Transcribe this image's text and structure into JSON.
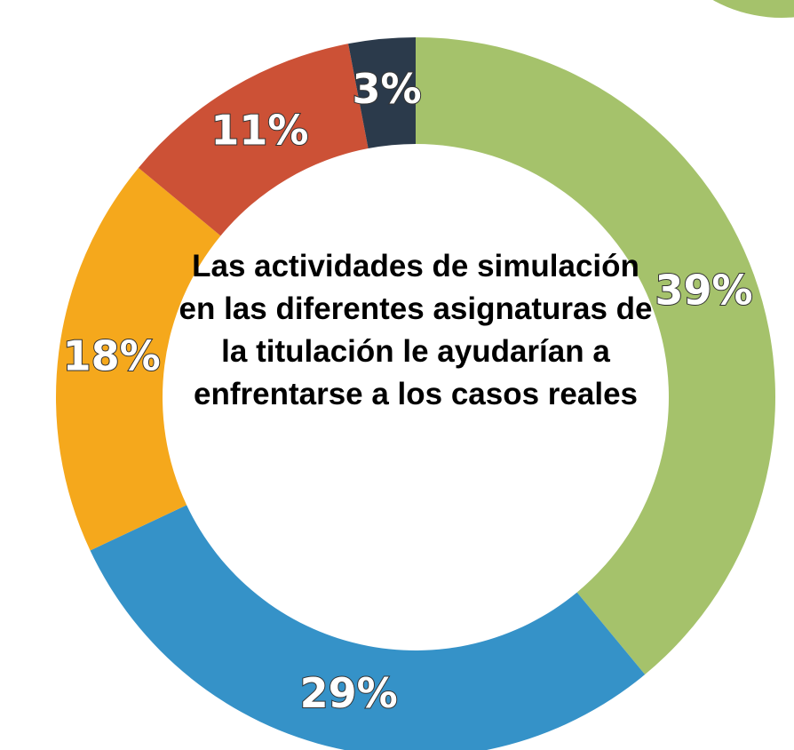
{
  "chart_data": {
    "type": "donut",
    "title": "Las actividades de simulación en las diferentes asignaturas de la titulación le ayudarían a enfrentarse a los casos reales",
    "categories": [
      null,
      null,
      null,
      null,
      null
    ],
    "values": [
      39,
      29,
      18,
      11,
      3
    ],
    "value_labels": [
      "39%",
      "29%",
      "18%",
      "11%",
      "3%"
    ],
    "colors": [
      "#a5c26b",
      "#3592c8",
      "#f5a81c",
      "#cc5136",
      "#2b3a4b"
    ]
  }
}
